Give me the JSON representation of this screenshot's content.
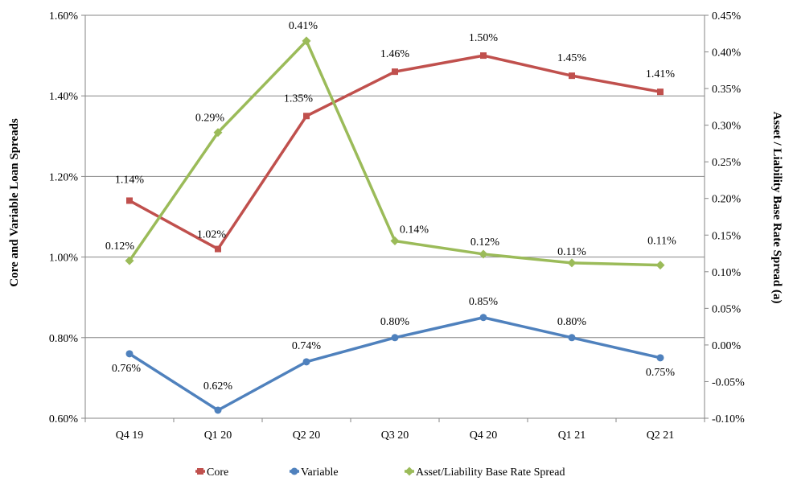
{
  "chart_data": {
    "type": "line",
    "categories": [
      "Q4 19",
      "Q1 20",
      "Q2 20",
      "Q3 20",
      "Q4 20",
      "Q1 21",
      "Q2 21"
    ],
    "series": [
      {
        "name": "Core",
        "axis": "left",
        "color": "#c0504d",
        "marker": "square",
        "values": [
          1.14,
          1.02,
          1.35,
          1.46,
          1.5,
          1.45,
          1.41
        ],
        "labels": [
          "1.14%",
          "1.02%",
          "1.35%",
          "1.46%",
          "1.50%",
          "1.45%",
          "1.41%"
        ]
      },
      {
        "name": "Variable",
        "axis": "left",
        "color": "#4f81bd",
        "marker": "circle",
        "values": [
          0.76,
          0.62,
          0.74,
          0.8,
          0.85,
          0.8,
          0.75
        ],
        "labels": [
          "0.76%",
          "0.62%",
          "0.74%",
          "0.80%",
          "0.85%",
          "0.80%",
          "0.75%"
        ]
      },
      {
        "name": "Asset/Liability Base Rate Spread",
        "axis": "right",
        "color": "#9bbb59",
        "marker": "diamond",
        "values": [
          0.115,
          0.29,
          0.415,
          0.142,
          0.124,
          0.112,
          0.109
        ],
        "labels": [
          "0.12%",
          "0.29%",
          "0.41%",
          "0.14%",
          "0.12%",
          "0.11%",
          "0.11%"
        ]
      }
    ],
    "y_left": {
      "label": "Core and Variable Loan Spreads",
      "min": 0.6,
      "max": 1.6,
      "ticks": [
        "0.60%",
        "0.80%",
        "1.00%",
        "1.20%",
        "1.40%",
        "1.60%"
      ],
      "tick_values": [
        0.6,
        0.8,
        1.0,
        1.2,
        1.4,
        1.6
      ]
    },
    "y_right": {
      "label": "Asset / Liability Base Rate Spread (a)",
      "min": -0.1,
      "max": 0.45,
      "ticks": [
        "-0.10%",
        "-0.05%",
        "0.00%",
        "0.05%",
        "0.10%",
        "0.15%",
        "0.20%",
        "0.25%",
        "0.30%",
        "0.35%",
        "0.40%",
        "0.45%"
      ],
      "tick_values": [
        -0.1,
        -0.05,
        0.0,
        0.05,
        0.1,
        0.15,
        0.2,
        0.25,
        0.3,
        0.35,
        0.4,
        0.45
      ]
    },
    "gridlines": true,
    "legend": "bottom"
  }
}
